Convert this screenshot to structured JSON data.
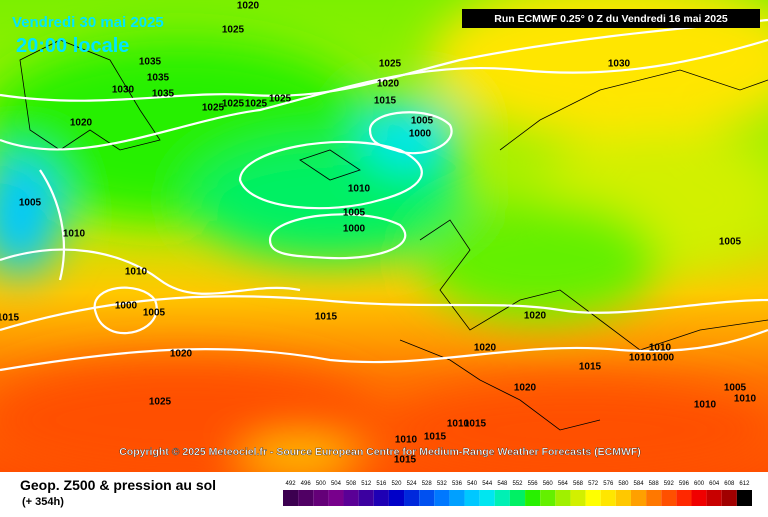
{
  "header": {
    "date": "Vendredi 30 mai 2025",
    "time": "20:00 locale",
    "run": "Run ECMWF 0.25° 0 Z du Vendredi 16 mai 2025"
  },
  "copyright": "Copyright © 2025 Meteociel.fr - Source European Centre for Medium-Range Weather Forecasts (ECMWF)",
  "footer": {
    "title": "Geop. Z500 & pression au sol",
    "subtitle": "(+ 354h)"
  },
  "scale": [
    {
      "label": "492",
      "color": "#3c0050"
    },
    {
      "label": "496",
      "color": "#500064"
    },
    {
      "label": "500",
      "color": "#640078"
    },
    {
      "label": "504",
      "color": "#78008c"
    },
    {
      "label": "508",
      "color": "#5a0096"
    },
    {
      "label": "512",
      "color": "#3c00a0"
    },
    {
      "label": "516",
      "color": "#1e00b4"
    },
    {
      "label": "520",
      "color": "#0000c8"
    },
    {
      "label": "524",
      "color": "#0028dc"
    },
    {
      "label": "528",
      "color": "#0050f0"
    },
    {
      "label": "532",
      "color": "#0078ff"
    },
    {
      "label": "536",
      "color": "#00a0ff"
    },
    {
      "label": "540",
      "color": "#00c8ff"
    },
    {
      "label": "544",
      "color": "#00e6f0"
    },
    {
      "label": "548",
      "color": "#00f0b4"
    },
    {
      "label": "552",
      "color": "#00f064"
    },
    {
      "label": "556",
      "color": "#28f000"
    },
    {
      "label": "560",
      "color": "#64f000"
    },
    {
      "label": "564",
      "color": "#a0f000"
    },
    {
      "label": "568",
      "color": "#d2f000"
    },
    {
      "label": "572",
      "color": "#ffff00"
    },
    {
      "label": "576",
      "color": "#ffe600"
    },
    {
      "label": "580",
      "color": "#ffc800"
    },
    {
      "label": "584",
      "color": "#ffa000"
    },
    {
      "label": "588",
      "color": "#ff7800"
    },
    {
      "label": "592",
      "color": "#ff5000"
    },
    {
      "label": "596",
      "color": "#ff2800"
    },
    {
      "label": "600",
      "color": "#f00000"
    },
    {
      "label": "604",
      "color": "#c80000"
    },
    {
      "label": "608",
      "color": "#a00000"
    },
    {
      "label": "612",
      "color": "#000000"
    }
  ],
  "isobar_labels": [
    "1020",
    "1025",
    "1035",
    "1035",
    "1030",
    "1035",
    "1025",
    "1025",
    "1025",
    "1025",
    "1020",
    "1025",
    "1020",
    "1015",
    "1005",
    "1000",
    "1030",
    "1010",
    "1005",
    "1010",
    "1005",
    "1000",
    "1005",
    "1010",
    "1000",
    "1005",
    "1015",
    "1015",
    "1020",
    "1020",
    "1020",
    "1010",
    "1010",
    "1000",
    "1015",
    "1020",
    "1025",
    "1005",
    "1010",
    "1010",
    "1015",
    "1010",
    "1010",
    "1015",
    "1015"
  ]
}
